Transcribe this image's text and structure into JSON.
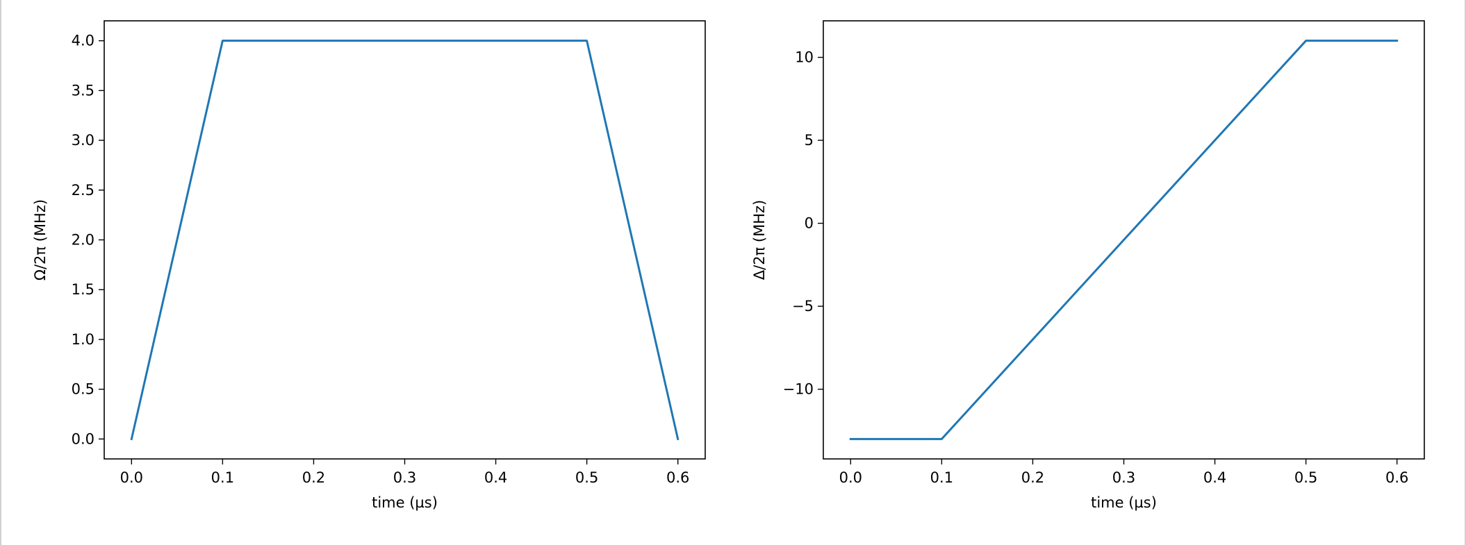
{
  "chart_data": [
    {
      "type": "line",
      "title": "",
      "xlabel": "time (µs)",
      "ylabel": "Ω/2π (MHz)",
      "xlim": [
        -0.03,
        0.63
      ],
      "ylim": [
        -0.2,
        4.2
      ],
      "xticks": [
        0.0,
        0.1,
        0.2,
        0.3,
        0.4,
        0.5,
        0.6
      ],
      "xtick_labels": [
        "0.0",
        "0.1",
        "0.2",
        "0.3",
        "0.4",
        "0.5",
        "0.6"
      ],
      "yticks": [
        0.0,
        0.5,
        1.0,
        1.5,
        2.0,
        2.5,
        3.0,
        3.5,
        4.0
      ],
      "ytick_labels": [
        "0.0",
        "0.5",
        "1.0",
        "1.5",
        "2.0",
        "2.5",
        "3.0",
        "3.5",
        "4.0"
      ],
      "grid": false,
      "series": [
        {
          "color": "#1f77b4",
          "x": [
            0.0,
            0.1,
            0.5,
            0.6
          ],
          "y": [
            0.0,
            4.0,
            4.0,
            0.0
          ]
        }
      ]
    },
    {
      "type": "line",
      "title": "",
      "xlabel": "time (µs)",
      "ylabel": "Δ/2π (MHz)",
      "xlim": [
        -0.03,
        0.63
      ],
      "ylim": [
        -14.2,
        12.2
      ],
      "xticks": [
        0.0,
        0.1,
        0.2,
        0.3,
        0.4,
        0.5,
        0.6
      ],
      "xtick_labels": [
        "0.0",
        "0.1",
        "0.2",
        "0.3",
        "0.4",
        "0.5",
        "0.6"
      ],
      "yticks": [
        -10,
        -5,
        0,
        5,
        10
      ],
      "ytick_labels": [
        "−10",
        "−5",
        "0",
        "5",
        "10"
      ],
      "grid": false,
      "series": [
        {
          "color": "#1f77b4",
          "x": [
            0.0,
            0.1,
            0.5,
            0.6
          ],
          "y": [
            -13.0,
            -13.0,
            11.0,
            11.0
          ]
        }
      ]
    }
  ]
}
